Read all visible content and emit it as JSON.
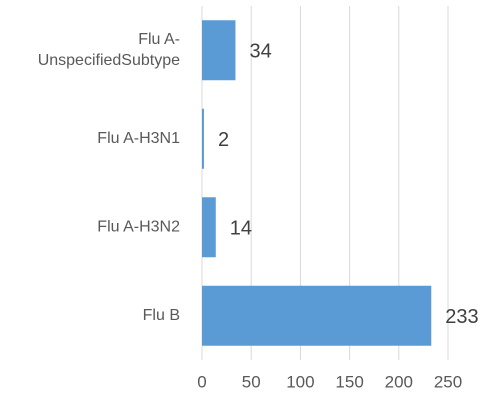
{
  "chart_data": {
    "type": "bar",
    "orientation": "horizontal",
    "categories": [
      "Flu A-UnspecifiedSubtype",
      "Flu A-H3N1",
      "Flu A-H3N2",
      "Flu B"
    ],
    "category_lines": [
      [
        "Flu A-",
        "UnspecifiedSubtype"
      ],
      [
        "Flu A-H3N1"
      ],
      [
        "Flu A-H3N2"
      ],
      [
        "Flu B"
      ]
    ],
    "values": [
      34,
      2,
      14,
      233
    ],
    "data_labels": [
      "34",
      "2",
      "14",
      "233"
    ],
    "xlim": [
      0,
      250
    ],
    "x_ticks": [
      0,
      50,
      100,
      150,
      200,
      250
    ],
    "x_tick_labels": [
      "0",
      "50",
      "100",
      "150",
      "200",
      "250"
    ],
    "title": "",
    "xlabel": "",
    "ylabel": "",
    "grid": true,
    "legend": "none",
    "bar_color": "#5b9bd5",
    "grid_color": "#d9d9d9"
  }
}
